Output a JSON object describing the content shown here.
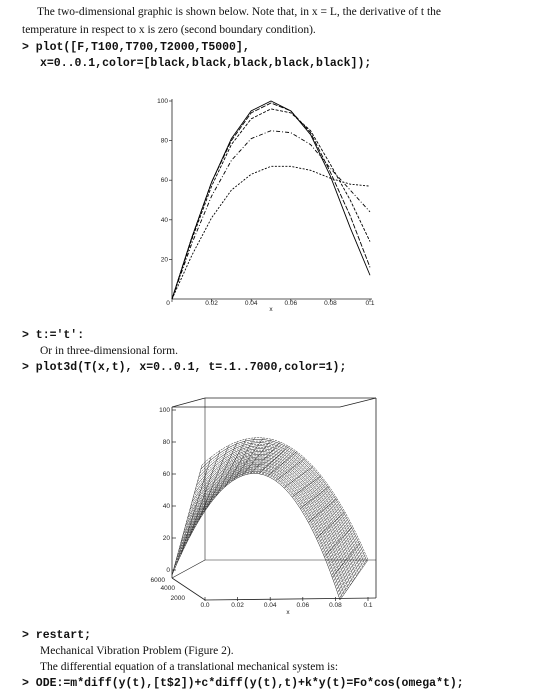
{
  "text": {
    "intro1": "The two-dimensional graphic is shown below.  Note that, in x = L, the derivative of t the",
    "intro2": "temperature in respect to x is zero (second boundary condition).",
    "code1": "> plot([F,T100,T700,T2000,T5000],",
    "code2": "x=0..0.1,color=[black,black,black,black,black]);",
    "code3": "> t:='t':",
    "text3": "Or in three-dimensional form.",
    "code4": "> plot3d(T(x,t), x=0..0.1, t=.1..7000,color=1);",
    "code5": "> restart;",
    "text5": "Mechanical Vibration Problem (Figure 2).",
    "text6": "The differential equation of a translational mechanical system is:",
    "code6": "> ODE:=m*diff(y(t),[t$2])+c*diff(y(t),t)+k*y(t)=Fo*cos(omega*t);"
  },
  "plot2d": {
    "type": "line",
    "x": [
      0,
      0.01,
      0.02,
      0.03,
      0.04,
      0.05,
      0.06,
      0.07,
      0.08,
      0.09,
      0.1
    ],
    "series": [
      {
        "color": "#000000",
        "values": [
          0,
          31,
          59,
          81,
          95,
          100,
          95,
          83,
          62,
          36,
          12
        ]
      },
      {
        "color": "#000000",
        "values": [
          0,
          31,
          59,
          80,
          94,
          99,
          95,
          84,
          64,
          42,
          16
        ]
      },
      {
        "color": "#000000",
        "values": [
          0,
          30,
          57,
          78,
          91,
          96,
          94,
          85,
          68,
          50,
          29
        ]
      },
      {
        "color": "#000000",
        "values": [
          0,
          28,
          52,
          70,
          81,
          85,
          84,
          78,
          66,
          55,
          44
        ]
      },
      {
        "color": "#000000",
        "values": [
          0,
          22,
          41,
          55,
          63,
          67,
          67,
          65,
          61,
          58,
          57
        ]
      }
    ],
    "xlim": [
      0,
      0.1
    ],
    "ylim": [
      0,
      100
    ],
    "xticks": [
      0,
      0.02,
      0.04,
      0.06,
      0.08,
      0.1
    ],
    "yticks": [
      20,
      40,
      60,
      80,
      100
    ],
    "xlabel": "x"
  },
  "plot3d": {
    "zticks": [
      0,
      20,
      40,
      60,
      80,
      100
    ],
    "tticks": [
      2000,
      4000,
      6000
    ],
    "xticks": [
      {
        "value": 0,
        "label": "0.0"
      },
      0.02,
      0.04,
      0.06,
      0.08,
      0.1
    ],
    "xlabel": "x"
  }
}
